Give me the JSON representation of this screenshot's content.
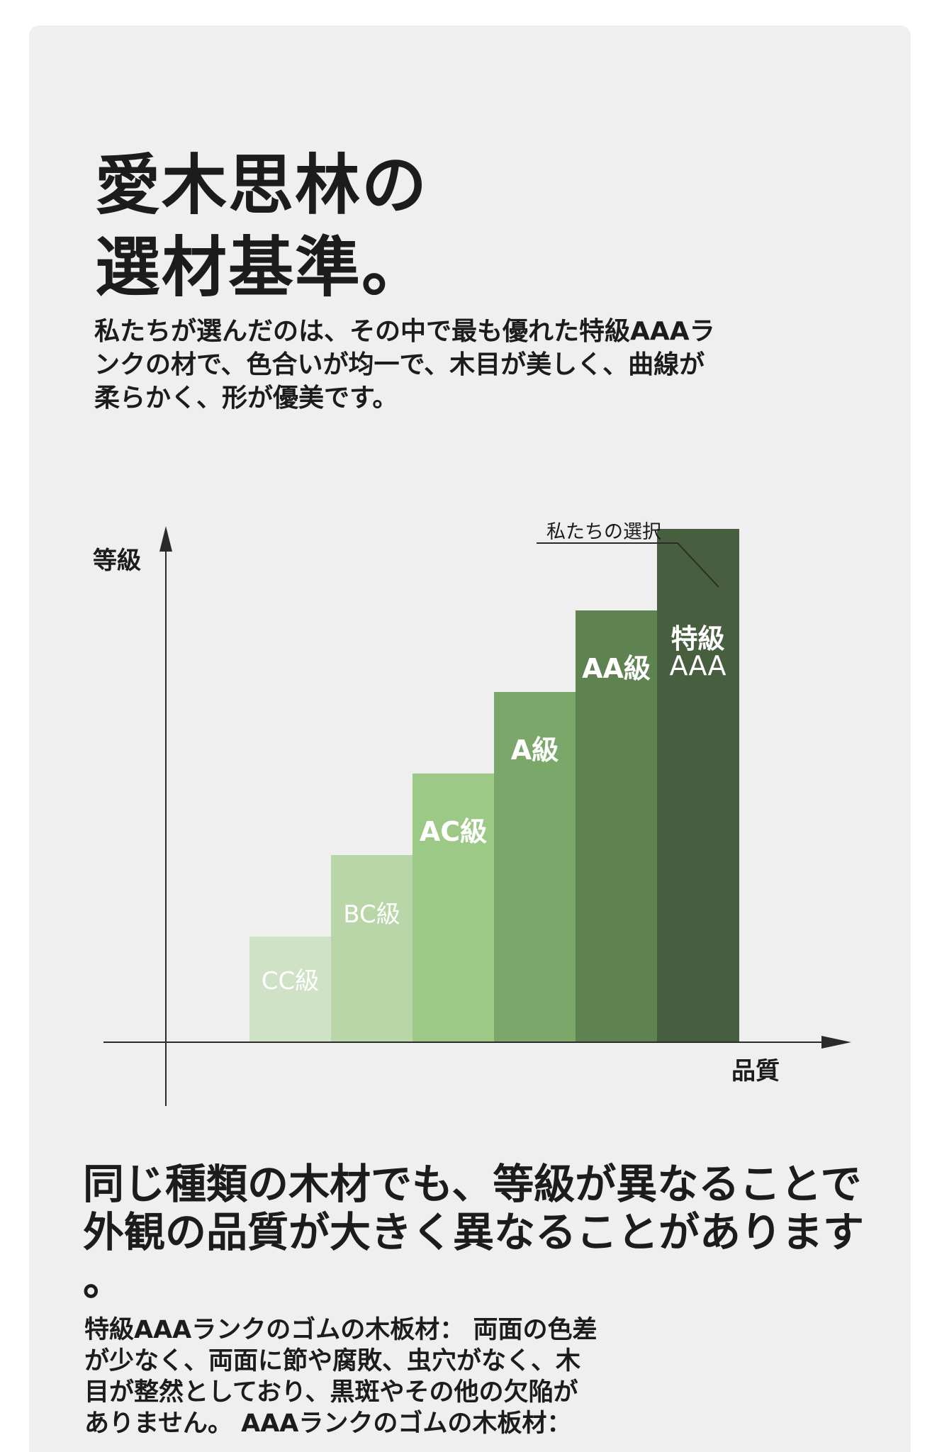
{
  "heading": {
    "line1": "愛木思林の",
    "line2": "選材基準。"
  },
  "intro": {
    "line1": "私たちが選んだのは、その中で最も優れた特級AAAラ",
    "line2": "ンクの材で、色合いが均一で、木目が美しく、曲線が",
    "line3": "柔らかく、形が優美です。"
  },
  "chart_data": {
    "type": "bar",
    "ylabel": "等級",
    "xlabel": "品質",
    "annotation": "私たちの選択",
    "categories": [
      {
        "line1": "CC級",
        "line2": ""
      },
      {
        "line1": "BC級",
        "line2": ""
      },
      {
        "line1": "AC級",
        "line2": ""
      },
      {
        "line1": "A級",
        "line2": ""
      },
      {
        "line1": "AA級",
        "line2": ""
      },
      {
        "line1": "特級",
        "line2": "AAA"
      }
    ],
    "values": [
      1,
      2,
      3,
      4,
      5,
      6
    ],
    "colors": [
      "#cfe2c6",
      "#b9d6a9",
      "#9dc986",
      "#7ba86a",
      "#5e8250",
      "#475f3e"
    ],
    "label_colors": [
      "#ffffff",
      "#ffffff",
      "#ffffff",
      "#ffffff",
      "#ffffff",
      "#ffffff"
    ],
    "grid": false,
    "legend": "none",
    "highlight_index": 5
  },
  "note": {
    "line1": "同じ種類の木材でも、等級が異なることで",
    "line2": "外観の品質が大きく異なることがあります",
    "line3": "。"
  },
  "detail": {
    "line1": "特級AAAランクのゴムの木板材： 両面の色差",
    "line2": "が少なく、両面に節や腐敗、虫穴がなく、木",
    "line3": "目が整然としており、黒斑やその他の欠陥が",
    "line4": "ありません。 AAAランクのゴムの木板材："
  }
}
